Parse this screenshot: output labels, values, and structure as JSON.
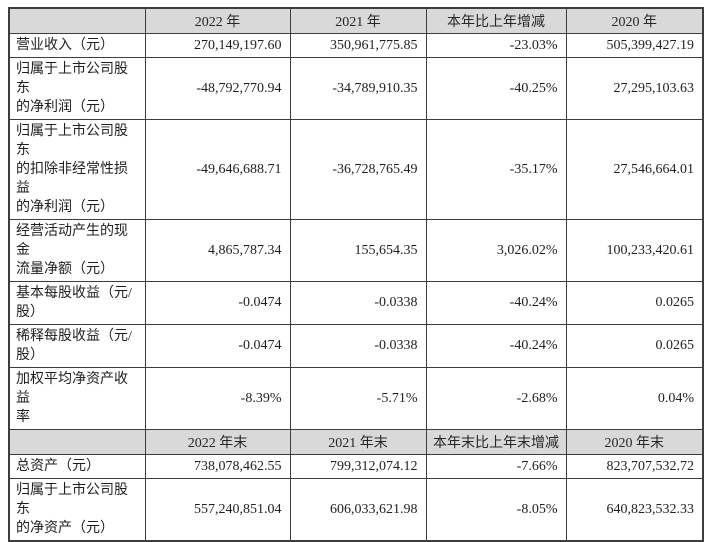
{
  "table": {
    "colors": {
      "header_bg": "#d9d9d9",
      "border": "#3d3d3d",
      "text": "#1f1f1f",
      "page_bg": "#ffffff"
    },
    "sections": [
      {
        "headers": [
          "",
          "2022 年",
          "2021 年",
          "本年比上年增减",
          "2020 年"
        ],
        "rows": [
          {
            "label": "营业收入（元）",
            "values": [
              "270,149,197.60",
              "350,961,775.85",
              "-23.03%",
              "505,399,427.19"
            ]
          },
          {
            "label": "归属于上市公司股东\n的净利润（元）",
            "values": [
              "-48,792,770.94",
              "-34,789,910.35",
              "-40.25%",
              "27,295,103.63"
            ]
          },
          {
            "label": "归属于上市公司股东\n的扣除非经常性损益\n的净利润（元）",
            "values": [
              "-49,646,688.71",
              "-36,728,765.49",
              "-35.17%",
              "27,546,664.01"
            ]
          },
          {
            "label": "经营活动产生的现金\n流量净额（元）",
            "values": [
              "4,865,787.34",
              "155,654.35",
              "3,026.02%",
              "100,233,420.61"
            ]
          },
          {
            "label": "基本每股收益（元/\n股）",
            "values": [
              "-0.0474",
              "-0.0338",
              "-40.24%",
              "0.0265"
            ]
          },
          {
            "label": "稀释每股收益（元/\n股）",
            "values": [
              "-0.0474",
              "-0.0338",
              "-40.24%",
              "0.0265"
            ]
          },
          {
            "label": "加权平均净资产收益\n率",
            "values": [
              "-8.39%",
              "-5.71%",
              "-2.68%",
              "0.04%"
            ]
          }
        ]
      },
      {
        "headers": [
          "",
          "2022 年末",
          "2021 年末",
          "本年末比上年末增减",
          "2020 年末"
        ],
        "rows": [
          {
            "label": "总资产（元）",
            "values": [
              "738,078,462.55",
              "799,312,074.12",
              "-7.66%",
              "823,707,532.72"
            ]
          },
          {
            "label": "归属于上市公司股东\n的净资产（元）",
            "values": [
              "557,240,851.04",
              "606,033,621.98",
              "-8.05%",
              "640,823,532.33"
            ]
          }
        ]
      }
    ]
  }
}
